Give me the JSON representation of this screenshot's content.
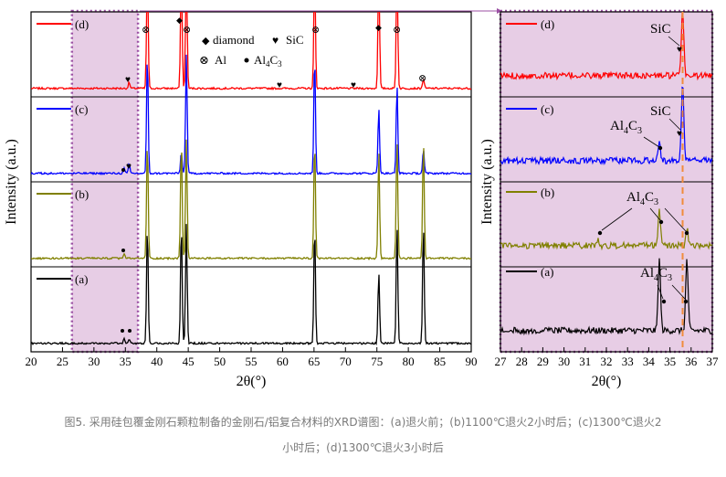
{
  "chart_data": [
    {
      "type": "line",
      "title": "",
      "xlabel": "2θ(°)",
      "ylabel": "Intensity (a.u.)",
      "xlim": [
        20,
        90
      ],
      "xticks": [
        "20",
        "25",
        "30",
        "35",
        "40",
        "45",
        "50",
        "55",
        "60",
        "65",
        "70",
        "75",
        "80",
        "85",
        "90"
      ],
      "highlight_range": [
        26.5,
        37
      ],
      "legend": {
        "diamond": "diamond",
        "sic": "SiC",
        "al": "Al",
        "al4c3_main": "Al",
        "al4c3_sub4": "4",
        "al4c3_C": "C",
        "al4c3_sub3": "3"
      },
      "series": [
        {
          "name": "(d)",
          "color": "#ff0000",
          "peaks": [
            [
              38.5,
              1.0
            ],
            [
              43.9,
              1.0
            ],
            [
              44.7,
              1.0
            ],
            [
              65.1,
              1.0
            ],
            [
              75.3,
              1.0
            ],
            [
              78.2,
              1.0
            ],
            [
              82.4,
              0.08
            ],
            [
              35.6,
              0.05
            ]
          ]
        },
        {
          "name": "(c)",
          "color": "#0000ff",
          "peaks": [
            [
              38.5,
              1.0
            ],
            [
              43.9,
              0.18
            ],
            [
              44.7,
              1.0
            ],
            [
              65.1,
              1.0
            ],
            [
              75.3,
              0.55
            ],
            [
              78.2,
              0.75
            ],
            [
              82.4,
              0.2
            ],
            [
              35.6,
              0.08
            ],
            [
              34.8,
              0.04
            ]
          ]
        },
        {
          "name": "(b)",
          "color": "#808000",
          "peaks": [
            [
              38.5,
              1.0
            ],
            [
              43.9,
              1.0
            ],
            [
              44.7,
              1.0
            ],
            [
              65.1,
              1.0
            ],
            [
              75.3,
              0.9
            ],
            [
              78.2,
              1.0
            ],
            [
              82.4,
              1.0
            ],
            [
              34.8,
              0.04
            ]
          ]
        },
        {
          "name": "(a)",
          "color": "#000000",
          "peaks": [
            [
              38.5,
              1.0
            ],
            [
              43.9,
              1.0
            ],
            [
              44.7,
              1.0
            ],
            [
              65.1,
              1.0
            ],
            [
              75.3,
              0.6
            ],
            [
              78.2,
              1.0
            ],
            [
              82.4,
              1.0
            ],
            [
              34.8,
              0.04
            ],
            [
              35.6,
              0.04
            ]
          ]
        }
      ]
    },
    {
      "type": "line",
      "title": "",
      "xlabel": "2θ(°)",
      "ylabel": "Intensity (a.u.)",
      "xlim": [
        27,
        37
      ],
      "xticks": [
        "27",
        "28",
        "29",
        "30",
        "31",
        "32",
        "33",
        "34",
        "35",
        "36",
        "37"
      ],
      "reference_line_x": 35.6,
      "series": [
        {
          "name": "(d)",
          "color": "#ff0000",
          "peaks": [
            [
              35.6,
              0.55
            ]
          ]
        },
        {
          "name": "(c)",
          "color": "#0000ff",
          "peaks": [
            [
              35.6,
              0.65
            ],
            [
              34.5,
              0.15
            ]
          ]
        },
        {
          "name": "(b)",
          "color": "#808000",
          "peaks": [
            [
              31.6,
              0.05
            ],
            [
              34.5,
              0.3
            ],
            [
              35.8,
              0.15
            ]
          ]
        },
        {
          "name": "(a)",
          "color": "#000000",
          "peaks": [
            [
              34.5,
              0.6
            ],
            [
              35.8,
              0.6
            ]
          ]
        }
      ],
      "annotations": {
        "d_label": "SiC",
        "c_label": "SiC",
        "al4c3_main": "Al",
        "al4c3_sub4": "4",
        "al4c3_C": "C",
        "al4c3_sub3": "3"
      }
    }
  ],
  "colors": {
    "highlight_fill": "#e7cde5",
    "highlight_border": "#9b4fa3",
    "dash_line": "#f08c3c"
  },
  "caption": {
    "line1": "图5. 采用硅包覆金刚石颗粒制备的金刚石/铝复合材料的XRD谱图：(a)退火前；(b)1100℃退火2小时后；(c)1300℃退火2",
    "line2": "小时后；(d)1300℃退火3小时后"
  }
}
